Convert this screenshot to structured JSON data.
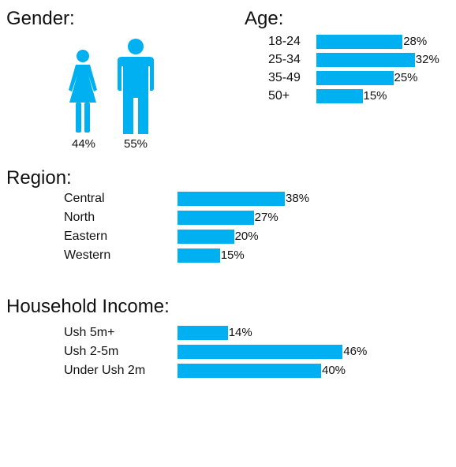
{
  "colors": {
    "bar": "#00b0f0",
    "text": "#111111",
    "background": "#ffffff"
  },
  "gender": {
    "title": "Gender:",
    "female_icon": "woman-icon",
    "male_icon": "man-icon",
    "female_pct": "44%",
    "male_pct": "55%"
  },
  "age": {
    "title": "Age:"
  },
  "region": {
    "title": "Region:"
  },
  "income": {
    "title": "Household Income:"
  },
  "chart_data": [
    {
      "type": "bar",
      "title": "Age:",
      "categories": [
        "18-24",
        "25-34",
        "35-49",
        "50+"
      ],
      "values": [
        28,
        32,
        25,
        15
      ],
      "labels": [
        "28%",
        "32%",
        "25%",
        "15%"
      ],
      "orientation": "horizontal",
      "unit": "%",
      "grid": false
    },
    {
      "type": "bar",
      "title": "Region:",
      "categories": [
        "Central",
        "North",
        "Eastern",
        "Western"
      ],
      "values": [
        38,
        27,
        20,
        15
      ],
      "labels": [
        "38%",
        "27%",
        "20%",
        "15%"
      ],
      "orientation": "horizontal",
      "unit": "%",
      "grid": false
    },
    {
      "type": "bar",
      "title": "Household Income:",
      "categories": [
        "Ush 5m+",
        "Ush 2-5m",
        "Under Ush 2m"
      ],
      "values": [
        14,
        46,
        40
      ],
      "labels": [
        "14%",
        "46%",
        "40%"
      ],
      "orientation": "horizontal",
      "unit": "%",
      "grid": false
    }
  ]
}
